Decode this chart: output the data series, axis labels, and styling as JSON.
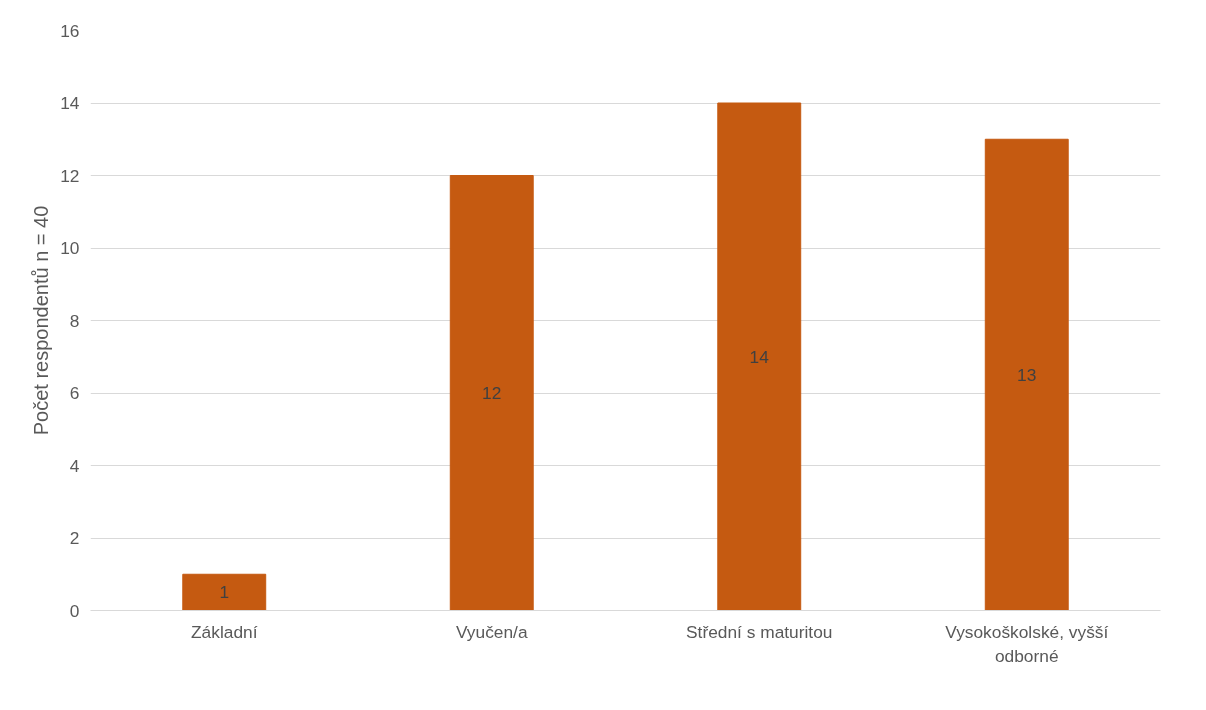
{
  "chart_data": {
    "type": "bar",
    "ylabel": "Počet respondentů n = 40",
    "categories": [
      "Základní",
      "Vyučen/a",
      "Střední s maturitou",
      "Vysokoškolské, vyšší odborné"
    ],
    "values": [
      1,
      12,
      14,
      13
    ],
    "color": "#c55a11",
    "ylim": [
      0,
      16
    ],
    "yticks": [
      0,
      2,
      4,
      6,
      8,
      10,
      12,
      14,
      16
    ],
    "grid": "y",
    "data_labels": true
  }
}
